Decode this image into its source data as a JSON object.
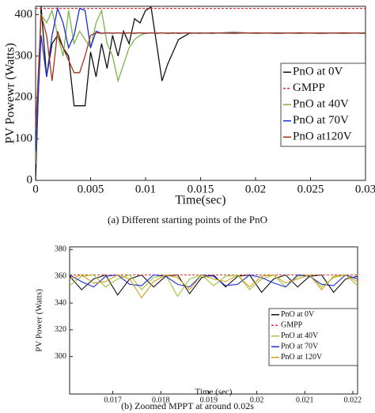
{
  "chart_data": [
    {
      "type": "line",
      "caption": "(a)   Different starting points of the PnO",
      "xlabel": "Time(sec)",
      "ylabel": "PV Powewr (Watts)",
      "xlim": [
        0,
        0.03
      ],
      "ylim": [
        0,
        420
      ],
      "xticks": [
        0,
        0.005,
        0.01,
        0.015,
        0.02,
        0.025,
        0.03
      ],
      "yticks": [
        0,
        100,
        200,
        300,
        400
      ],
      "x": [
        0,
        0.0005,
        0.001,
        0.0015,
        0.002,
        0.0025,
        0.003,
        0.0035,
        0.004,
        0.0045,
        0.005,
        0.0055,
        0.006,
        0.0065,
        0.007,
        0.0075,
        0.008,
        0.0085,
        0.009,
        0.0095,
        0.01,
        0.0105,
        0.011,
        0.0115,
        0.012,
        0.0125,
        0.013,
        0.014,
        0.015,
        0.016,
        0.018,
        0.02,
        0.022,
        0.024,
        0.026,
        0.028,
        0.03
      ],
      "series": [
        {
          "name": "PnO at 0V",
          "color": "#111111",
          "dashed": false,
          "values": [
            0,
            420,
            250,
            330,
            350,
            320,
            300,
            180,
            180,
            180,
            310,
            250,
            330,
            270,
            350,
            300,
            360,
            330,
            390,
            380,
            410,
            418,
            330,
            240,
            280,
            310,
            340,
            355,
            356,
            355,
            357,
            355,
            356,
            355,
            356,
            355,
            356
          ]
        },
        {
          "name": "GMPP",
          "color": "#e03030",
          "dashed": true,
          "values": [
            415,
            415,
            415,
            415,
            415,
            415,
            415,
            415,
            415,
            415,
            415,
            415,
            415,
            415,
            415,
            415,
            415,
            415,
            415,
            415,
            415,
            415,
            415,
            415,
            415,
            415,
            415,
            415,
            415,
            415,
            415,
            415,
            415,
            415,
            415,
            415,
            415
          ]
        },
        {
          "name": "PnO at 40V",
          "color": "#7ab648",
          "dashed": false,
          "values": [
            40,
            400,
            380,
            410,
            350,
            300,
            410,
            330,
            360,
            340,
            320,
            380,
            410,
            330,
            300,
            240,
            280,
            320,
            340,
            350,
            355,
            356,
            355,
            356,
            355,
            355,
            356,
            355,
            356,
            355,
            356,
            355,
            356,
            355,
            356,
            355,
            356
          ]
        },
        {
          "name": "PnO at 70V",
          "color": "#1f2fd6",
          "dashed": false,
          "values": [
            70,
            350,
            250,
            350,
            415,
            380,
            320,
            350,
            415,
            410,
            320,
            360,
            355,
            356,
            355,
            356,
            355,
            356,
            355,
            356,
            355,
            356,
            355,
            356,
            355,
            356,
            355,
            356,
            355,
            356,
            355,
            356,
            355,
            356,
            355,
            356,
            355
          ]
        },
        {
          "name": "PnO at120V",
          "color": "#a0341c",
          "dashed": false,
          "values": [
            120,
            400,
            350,
            240,
            360,
            320,
            290,
            260,
            260,
            300,
            350,
            356,
            355,
            356,
            355,
            356,
            355,
            356,
            355,
            356,
            355,
            356,
            355,
            356,
            355,
            356,
            355,
            356,
            355,
            356,
            355,
            356,
            355,
            356,
            355,
            356,
            355
          ]
        }
      ]
    },
    {
      "type": "line",
      "caption": "(b) Zoomed MPPT at around 0.02s",
      "xlabel": "Time (sec)",
      "ylabel": "PV Power (Watts)",
      "xlim": [
        0.0161,
        0.0221
      ],
      "ylim": [
        272,
        382
      ],
      "xticks": [
        0.017,
        0.018,
        0.019,
        0.02,
        0.021,
        0.022
      ],
      "yticks": [
        300,
        320,
        340,
        360,
        380
      ],
      "x": [
        0.0161,
        0.01635,
        0.0166,
        0.01685,
        0.0171,
        0.01735,
        0.0176,
        0.01785,
        0.0181,
        0.01835,
        0.0186,
        0.01885,
        0.0191,
        0.01935,
        0.0196,
        0.01985,
        0.0201,
        0.02035,
        0.0206,
        0.02085,
        0.0211,
        0.02135,
        0.0216,
        0.02185,
        0.0221
      ],
      "series": [
        {
          "name": "PnO at 0V",
          "color": "#111111",
          "dashed": false,
          "values": [
            360,
            350,
            358,
            361,
            346,
            358,
            361,
            352,
            360,
            361,
            347,
            359,
            361,
            352,
            360,
            361,
            348,
            358,
            361,
            352,
            360,
            361,
            348,
            358,
            360
          ]
        },
        {
          "name": "GMPP",
          "color": "#e03030",
          "dashed": true,
          "values": [
            361,
            361,
            361,
            361,
            361,
            361,
            361,
            361,
            361,
            361,
            361,
            361,
            361,
            361,
            361,
            361,
            361,
            361,
            361,
            361,
            361,
            361,
            361,
            361,
            361
          ]
        },
        {
          "name": "PnO at 40V",
          "color": "#9cc43c",
          "dashed": false,
          "values": [
            353,
            360,
            361,
            352,
            358,
            361,
            350,
            359,
            361,
            345,
            358,
            361,
            353,
            360,
            361,
            350,
            358,
            361,
            352,
            360,
            361,
            352,
            359,
            361,
            353
          ]
        },
        {
          "name": "PnO at 70V",
          "color": "#1f2fd6",
          "dashed": false,
          "values": [
            361,
            356,
            352,
            360,
            361,
            354,
            353,
            361,
            360,
            354,
            352,
            361,
            360,
            353,
            354,
            361,
            359,
            355,
            352,
            361,
            360,
            354,
            353,
            361,
            358
          ]
        },
        {
          "name": "PnO at 120V",
          "color": "#d4a017",
          "dashed": false,
          "values": [
            358,
            361,
            355,
            356,
            361,
            358,
            344,
            356,
            361,
            359,
            350,
            361,
            358,
            356,
            361,
            352,
            360,
            361,
            355,
            358,
            361,
            350,
            360,
            361,
            356
          ]
        }
      ]
    }
  ]
}
